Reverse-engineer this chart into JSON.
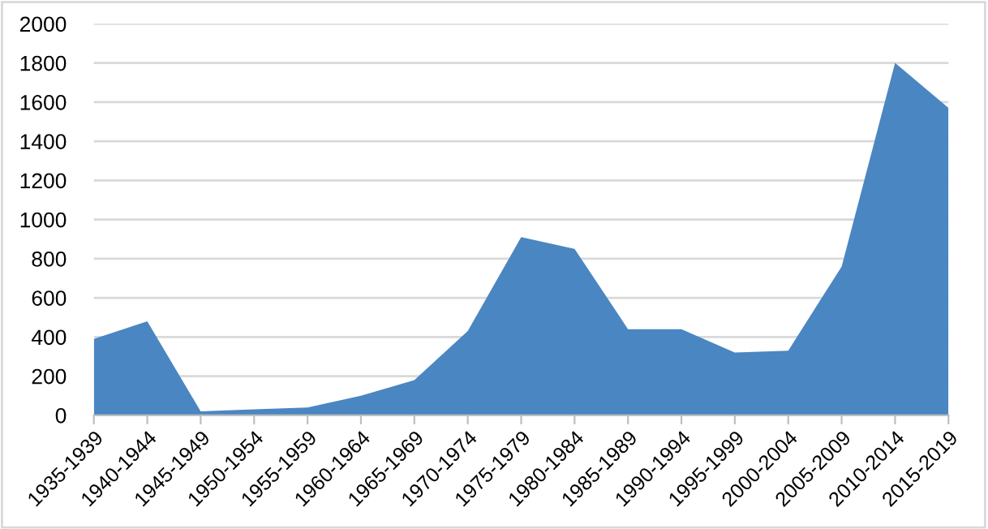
{
  "chart_data": {
    "type": "area",
    "categories": [
      "1935-1939",
      "1940-1944",
      "1945-1949",
      "1950-1954",
      "1955-1959",
      "1960-1964",
      "1965-1969",
      "1970-1974",
      "1975-1979",
      "1980-1984",
      "1985-1989",
      "1990-1994",
      "1995-1999",
      "2000-2004",
      "2005-2009",
      "2010-2014",
      "2015-2019"
    ],
    "series": [
      {
        "color": "#4a86c2",
        "values": [
          390,
          480,
          20,
          30,
          40,
          100,
          180,
          430,
          910,
          850,
          440,
          440,
          320,
          330,
          760,
          1800,
          1570
        ]
      }
    ],
    "ylim": [
      0,
      2000
    ],
    "yticks": [
      0,
      200,
      400,
      600,
      800,
      1000,
      1200,
      1400,
      1600,
      1800,
      2000
    ],
    "grid": "y"
  }
}
